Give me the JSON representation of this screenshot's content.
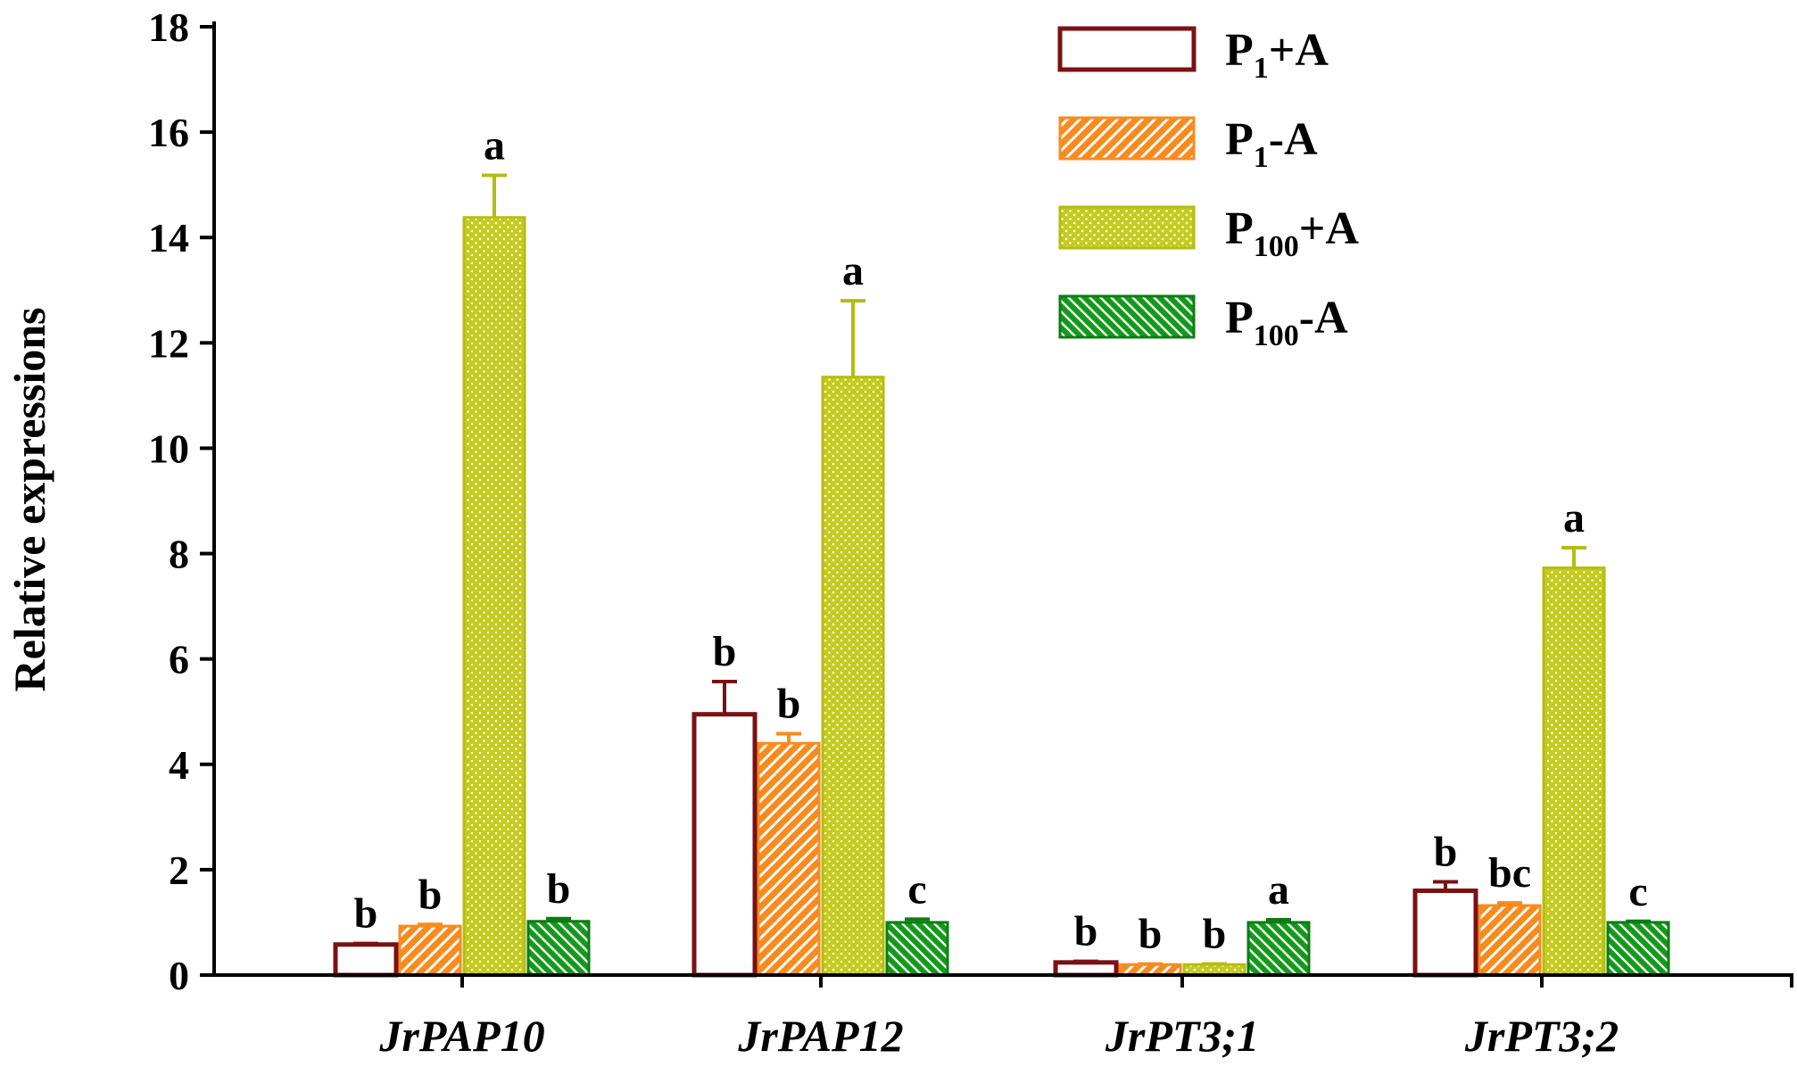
{
  "chart_data": {
    "type": "bar",
    "title": "",
    "xlabel": "",
    "ylabel": "Relative expressions",
    "ylim": [
      0,
      18
    ],
    "yticks": [
      0,
      2,
      4,
      6,
      8,
      10,
      12,
      14,
      16,
      18
    ],
    "grid": false,
    "legend_position": "top-right",
    "categories": [
      "JrPAP10",
      "JrPAP12",
      "JrPT3;1",
      "JrPT3;2"
    ],
    "series": [
      {
        "name": "P1+A",
        "legend": {
          "base": "P",
          "sub": "1",
          "suffix": "+A"
        },
        "color": "#7b1113",
        "fill": "#ffffff",
        "pattern": "none",
        "values": [
          0.58,
          4.95,
          0.24,
          1.6
        ],
        "errors": [
          0.02,
          0.62,
          0.02,
          0.17
        ],
        "letters": [
          "b",
          "b",
          "b",
          "b"
        ]
      },
      {
        "name": "P1-A",
        "legend": {
          "base": "P",
          "sub": "1",
          "suffix": "-A"
        },
        "color": "#f98b1e",
        "fill": "#f98b1e",
        "pattern": "diagonal-up",
        "values": [
          0.93,
          4.4,
          0.2,
          1.32
        ],
        "errors": [
          0.03,
          0.18,
          0.01,
          0.05
        ],
        "letters": [
          "b",
          "b",
          "b",
          "bc"
        ]
      },
      {
        "name": "P100+A",
        "legend": {
          "base": "P",
          "sub": "100",
          "suffix": "+A"
        },
        "color": "#b5bd10",
        "fill": "#c4cb1c",
        "pattern": "dots",
        "values": [
          14.38,
          11.35,
          0.2,
          7.73
        ],
        "errors": [
          0.8,
          1.45,
          0.01,
          0.38
        ],
        "letters": [
          "a",
          "a",
          "b",
          "a"
        ]
      },
      {
        "name": "P100-A",
        "legend": {
          "base": "P",
          "sub": "100",
          "suffix": "-A"
        },
        "color": "#0c7d12",
        "fill": "#139a1a",
        "pattern": "diagonal-down",
        "values": [
          1.02,
          1.0,
          1.0,
          1.0
        ],
        "errors": [
          0.05,
          0.06,
          0.05,
          0.02
        ],
        "letters": [
          "b",
          "c",
          "a",
          "c"
        ]
      }
    ]
  }
}
